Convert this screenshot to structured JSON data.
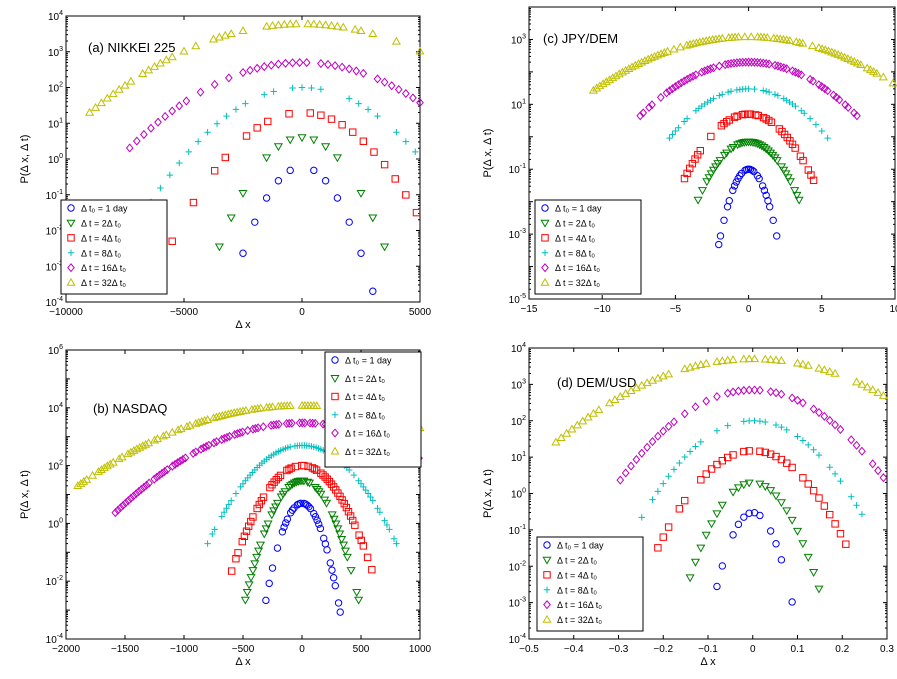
{
  "chart_data": [
    {
      "id": "a",
      "type": "scatter",
      "title": "(a) NIKKEI 225",
      "xlabel": "Δ x",
      "ylabel": "P(Δ x, Δ t)",
      "xlim": [
        -10000,
        5000
      ],
      "ylim": [
        0.0001,
        10000
      ],
      "yscale": "log",
      "xticks": [
        -10000,
        -5000,
        0,
        5000
      ],
      "xtick_labels": [
        "−10000",
        "−5000",
        "0",
        "5000"
      ],
      "legend_loc": "lower-left",
      "series": [
        {
          "name": "Δ t₀ = 1 day",
          "center": 0,
          "peak": 0.6,
          "halfwidth": 3000,
          "floor": 0.0002,
          "step": 500
        },
        {
          "name": "Δ t = 2Δ t₀",
          "center": 0,
          "peak": 4,
          "halfwidth": 3800,
          "floor": 0.001,
          "step": 500
        },
        {
          "name": "Δ t = 4Δ t₀",
          "center": 0,
          "peak": 20,
          "halfwidth": 5500,
          "floor": 0.005,
          "step": 450
        },
        {
          "name": "Δ t = 8Δ t₀",
          "center": 0,
          "peak": 100,
          "halfwidth": 6500,
          "floor": 0.05,
          "step": 400
        },
        {
          "name": "Δ t = 16Δ t₀",
          "center": 0,
          "peak": 500,
          "halfwidth": 7500,
          "floor": 1.5,
          "step": 300
        },
        {
          "name": "Δ t = 32Δ t₀",
          "center": 0,
          "peak": 6000,
          "halfwidth": 9000,
          "floor": 20,
          "step": 250
        }
      ]
    },
    {
      "id": "c",
      "type": "scatter",
      "title": "(c) JPY/DEM",
      "xlabel": "",
      "ylabel": "P(Δ x, Δ t)",
      "xlim": [
        -15,
        10
      ],
      "ylim": [
        1e-05,
        10000
      ],
      "yscale": "log",
      "xticks": [
        -15,
        -10,
        -5,
        0,
        5,
        10
      ],
      "xtick_labels": [
        "−15",
        "−10",
        "−5",
        "0",
        "5",
        "10"
      ],
      "legend_loc": "lower-left",
      "series": [
        {
          "name": "Δ t₀ = 1 day",
          "center": 0,
          "peak": 0.1,
          "halfwidth": 2.2,
          "floor": 0.0002,
          "step": 0.12
        },
        {
          "name": "Δ t = 2Δ t₀",
          "center": 0,
          "peak": 0.7,
          "halfwidth": 3.5,
          "floor": 0.01,
          "step": 0.15
        },
        {
          "name": "Δ t = 4Δ t₀",
          "center": 0,
          "peak": 5,
          "halfwidth": 4.5,
          "floor": 0.04,
          "step": 0.18
        },
        {
          "name": "Δ t = 8Δ t₀",
          "center": 0,
          "peak": 30,
          "halfwidth": 5.5,
          "floor": 0.8,
          "step": 0.2
        },
        {
          "name": "Δ t = 16Δ t₀",
          "center": 0,
          "peak": 200,
          "halfwidth": 7.5,
          "floor": 4,
          "step": 0.2
        },
        {
          "name": "Δ t = 32Δ t₀",
          "center": 0,
          "peak": 1200,
          "halfwidth": 11,
          "floor": 20,
          "step": 0.22
        }
      ]
    },
    {
      "id": "b",
      "type": "scatter",
      "title": "(b) NASDAQ",
      "xlabel": "Δ x",
      "ylabel": "P(Δ x, Δ t)",
      "xlim": [
        -2000,
        1000
      ],
      "ylim": [
        0.0001,
        1000000
      ],
      "yscale": "log",
      "xticks": [
        -2000,
        -1500,
        -1000,
        -500,
        0,
        500,
        1000
      ],
      "xtick_labels": [
        "−2000",
        "−1500",
        "−1000",
        "−500",
        "0",
        "500",
        "1000"
      ],
      "legend_loc": "upper-right",
      "series": [
        {
          "name": "Δ t₀ = 1 day",
          "center": 0,
          "peak": 5,
          "halfwidth": 350,
          "floor": 0.0002,
          "step": 14
        },
        {
          "name": "Δ t = 2Δ t₀",
          "center": 0,
          "peak": 30,
          "halfwidth": 500,
          "floor": 0.001,
          "step": 16
        },
        {
          "name": "Δ t = 4Δ t₀",
          "center": 0,
          "peak": 100,
          "halfwidth": 600,
          "floor": 0.02,
          "step": 18
        },
        {
          "name": "Δ t = 8Δ t₀",
          "center": 0,
          "peak": 500,
          "halfwidth": 800,
          "floor": 0.2,
          "step": 20
        },
        {
          "name": "Δ t = 16Δ t₀",
          "center": 0,
          "peak": 3000,
          "halfwidth": 1600,
          "floor": 2,
          "step": 22
        },
        {
          "name": "Δ t = 32Δ t₀",
          "center": 0,
          "peak": 12000,
          "halfwidth": 1900,
          "floor": 20,
          "step": 25
        }
      ]
    },
    {
      "id": "d",
      "type": "scatter",
      "title": "(d) DEM/USD",
      "xlabel": "Δ x",
      "ylabel": "P(Δ x, Δ t)",
      "xlim": [
        -0.5,
        0.3
      ],
      "ylim": [
        0.0001,
        10000
      ],
      "yscale": "log",
      "xticks": [
        -0.5,
        -0.4,
        -0.3,
        -0.2,
        -0.1,
        0,
        0.1,
        0.2,
        0.3
      ],
      "xtick_labels": [
        "−0.5",
        "−0.4",
        "−0.3",
        "−0.2",
        "−0.1",
        "0",
        "0.1",
        "0.2",
        "0.3"
      ],
      "legend_loc": "lower-left",
      "series": [
        {
          "name": "Δ t₀ = 1 day",
          "center": 0,
          "peak": 0.3,
          "halfwidth": 0.1,
          "floor": 0.0002,
          "step": 0.012
        },
        {
          "name": "Δ t = 2Δ t₀",
          "center": 0,
          "peak": 2,
          "halfwidth": 0.15,
          "floor": 0.002,
          "step": 0.012
        },
        {
          "name": "Δ t = 4Δ t₀",
          "center": 0,
          "peak": 15,
          "halfwidth": 0.22,
          "floor": 0.02,
          "step": 0.012
        },
        {
          "name": "Δ t = 8Δ t₀",
          "center": 0,
          "peak": 100,
          "halfwidth": 0.25,
          "floor": 0.2,
          "step": 0.012
        },
        {
          "name": "Δ t = 16Δ t₀",
          "center": 0,
          "peak": 700,
          "halfwidth": 0.3,
          "floor": 2,
          "step": 0.012
        },
        {
          "name": "Δ t = 32Δ t₀",
          "center": 0,
          "peak": 5000,
          "halfwidth": 0.45,
          "floor": 20,
          "step": 0.012
        }
      ]
    }
  ],
  "series_style": [
    {
      "marker": "circle",
      "color": "#0000ff"
    },
    {
      "marker": "triangle-down",
      "color": "#008000"
    },
    {
      "marker": "square",
      "color": "#ff0000"
    },
    {
      "marker": "plus",
      "color": "#00bfbf"
    },
    {
      "marker": "diamond",
      "color": "#bf00bf"
    },
    {
      "marker": "triangle-up",
      "color": "#bfbf00"
    }
  ]
}
